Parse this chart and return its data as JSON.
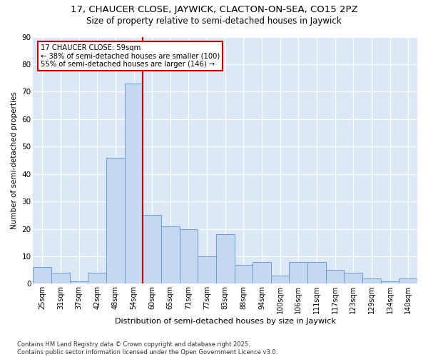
{
  "title1": "17, CHAUCER CLOSE, JAYWICK, CLACTON-ON-SEA, CO15 2PZ",
  "title2": "Size of property relative to semi-detached houses in Jaywick",
  "xlabel": "Distribution of semi-detached houses by size in Jaywick",
  "ylabel": "Number of semi-detached properties",
  "categories": [
    "25sqm",
    "31sqm",
    "37sqm",
    "42sqm",
    "48sqm",
    "54sqm",
    "60sqm",
    "65sqm",
    "71sqm",
    "77sqm",
    "83sqm",
    "88sqm",
    "94sqm",
    "100sqm",
    "106sqm",
    "111sqm",
    "117sqm",
    "123sqm",
    "129sqm",
    "134sqm",
    "140sqm"
  ],
  "values": [
    6,
    4,
    1,
    4,
    46,
    73,
    25,
    21,
    20,
    10,
    18,
    7,
    8,
    3,
    8,
    8,
    5,
    4,
    2,
    1,
    2
  ],
  "bar_color": "#c5d8f0",
  "bar_edge_color": "#6a9fd8",
  "vline_x": 5.5,
  "vline_color": "#cc0000",
  "annotation_text": "17 CHAUCER CLOSE: 59sqm\n← 38% of semi-detached houses are smaller (100)\n55% of semi-detached houses are larger (146) →",
  "annotation_box_color": "#cc0000",
  "ylim": [
    0,
    90
  ],
  "yticks": [
    0,
    10,
    20,
    30,
    40,
    50,
    60,
    70,
    80,
    90
  ],
  "background_color": "#dce8f5",
  "footer": "Contains HM Land Registry data © Crown copyright and database right 2025.\nContains public sector information licensed under the Open Government Licence v3.0.",
  "title1_fontsize": 9.5,
  "title2_fontsize": 8.5,
  "xlabel_fontsize": 8,
  "ylabel_fontsize": 7.5
}
